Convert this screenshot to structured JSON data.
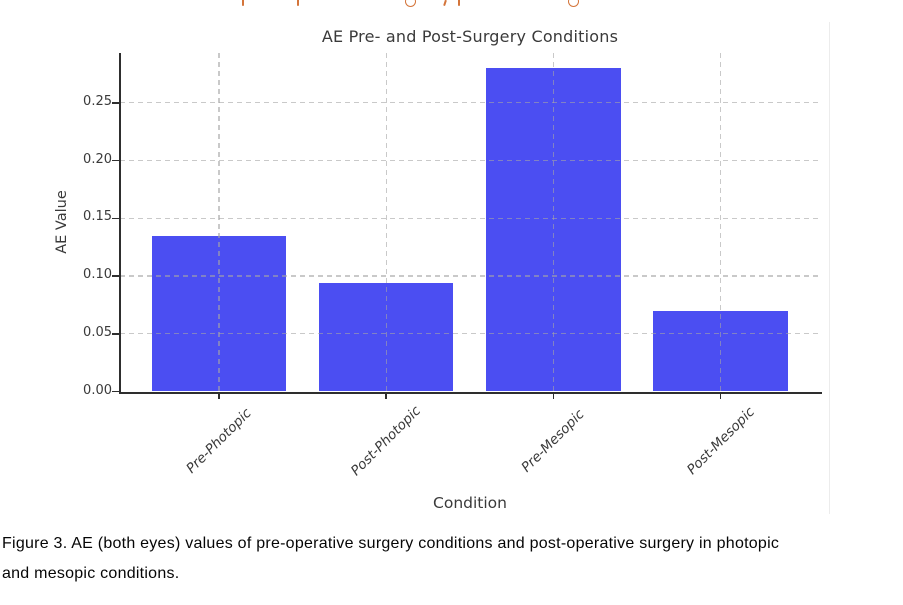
{
  "page": {
    "background": "#ffffff",
    "accent_orange": "#d4753b"
  },
  "chart_data": {
    "type": "bar",
    "title": "AE Pre- and Post-Surgery Conditions",
    "xlabel": "Condition",
    "ylabel": "AE Value",
    "categories": [
      "Pre-Photopic",
      "Post-Photopic",
      "Pre-Mesopic",
      "Post-Mesopic"
    ],
    "values": [
      0.135,
      0.094,
      0.28,
      0.07
    ],
    "ytick_labels": [
      "0.00",
      "0.05",
      "0.10",
      "0.15",
      "0.20",
      "0.25"
    ],
    "ylim": [
      0,
      0.2932
    ],
    "grid": true,
    "grid_style": "dashed",
    "xtick_rotation_deg": 45,
    "legend": "none",
    "bar_color": "#4b4ef2",
    "axis_color": "#2e2e2e",
    "text_color": "#3a3a3a"
  },
  "caption": {
    "line1": "Figure 3. AE (both eyes) values of pre-operative surgery conditions and post-operative surgery in photopic",
    "line2": "and mesopic conditions."
  }
}
